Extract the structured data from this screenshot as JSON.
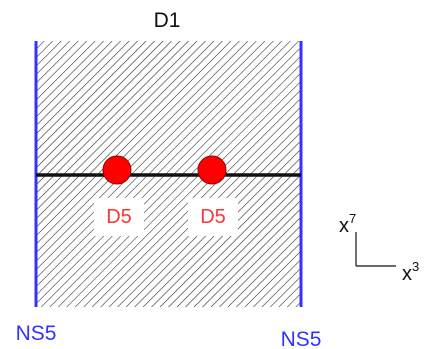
{
  "labels": {
    "top_brane": "D1",
    "left_brane": "NS5",
    "right_brane": "NS5",
    "d5_left": "D5",
    "d5_right": "D5",
    "axis_vertical_base": "x",
    "axis_vertical_sup": "7",
    "axis_horizontal_base": "x",
    "axis_horizontal_sup": "3"
  },
  "colors": {
    "ns5_line": "#3333ff",
    "ns5_text": "#3333ff",
    "d5_fill": "#ff0000",
    "d5_text": "#ff3333",
    "hatch": "#222222",
    "horizontal_line": "#111111"
  }
}
